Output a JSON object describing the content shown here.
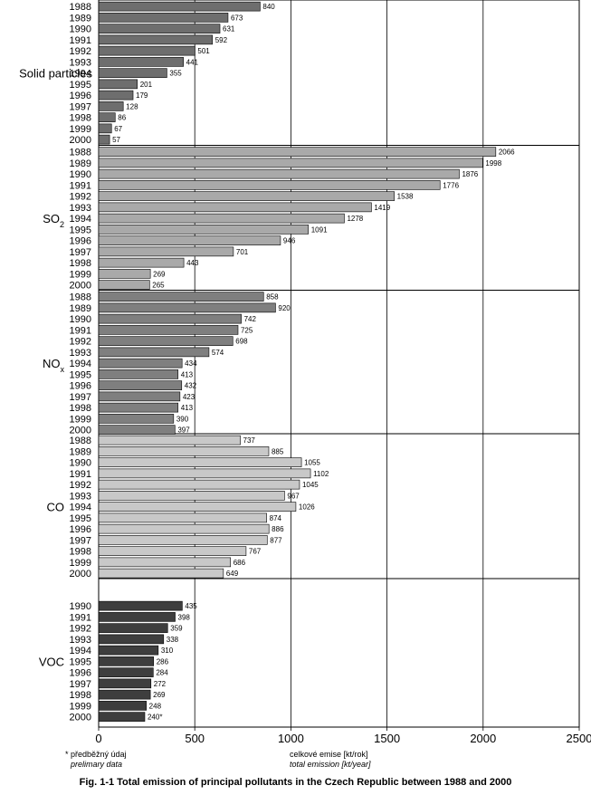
{
  "chart_data": {
    "type": "bar",
    "orientation": "horizontal",
    "xlim": [
      0,
      2500
    ],
    "xticks": [
      0,
      500,
      1000,
      1500,
      2000,
      2500
    ],
    "gridlines": true,
    "groups": [
      {
        "name": "Solid particles",
        "name_sub": "",
        "color": "#6e6e6e",
        "years": [
          "1988",
          "1989",
          "1990",
          "1991",
          "1992",
          "1993",
          "1994",
          "1995",
          "1996",
          "1997",
          "1998",
          "1999",
          "2000"
        ],
        "values": [
          840,
          673,
          631,
          592,
          501,
          441,
          355,
          201,
          179,
          128,
          86,
          67,
          57
        ],
        "labels": [
          "840",
          "673",
          "631",
          "592",
          "501",
          "441",
          "355",
          "201",
          "179",
          "128",
          "86",
          "67",
          "57"
        ]
      },
      {
        "name": "SO",
        "name_sub": "2",
        "color": "#a9a9a9",
        "years": [
          "1988",
          "1989",
          "1990",
          "1991",
          "1992",
          "1993",
          "1994",
          "1995",
          "1996",
          "1997",
          "1998",
          "1999",
          "2000"
        ],
        "values": [
          2066,
          1998,
          1876,
          1776,
          1538,
          1419,
          1278,
          1091,
          946,
          701,
          443,
          269,
          265
        ],
        "labels": [
          "2066",
          "1998",
          "1876",
          "1776",
          "1538",
          "1419",
          "1278",
          "1091",
          "946",
          "701",
          "443",
          "269",
          "265"
        ]
      },
      {
        "name": "NO",
        "name_sub": "x",
        "color": "#7f7f7f",
        "years": [
          "1988",
          "1989",
          "1990",
          "1991",
          "1992",
          "1993",
          "1994",
          "1995",
          "1996",
          "1997",
          "1998",
          "1999",
          "2000"
        ],
        "values": [
          858,
          920,
          742,
          725,
          698,
          574,
          434,
          413,
          432,
          423,
          413,
          390,
          397
        ],
        "labels": [
          "858",
          "920",
          "742",
          "725",
          "698",
          "574",
          "434",
          "413",
          "432",
          "423",
          "413",
          "390",
          "397"
        ]
      },
      {
        "name": "CO",
        "name_sub": "",
        "color": "#c8c8c8",
        "years": [
          "1988",
          "1989",
          "1990",
          "1991",
          "1992",
          "1993",
          "1994",
          "1995",
          "1996",
          "1997",
          "1998",
          "1999",
          "2000"
        ],
        "values": [
          737,
          885,
          1055,
          1102,
          1045,
          967,
          1026,
          874,
          886,
          877,
          767,
          686,
          649
        ],
        "labels": [
          "737",
          "885",
          "1055",
          "1102",
          "1045",
          "967",
          "1026",
          "874",
          "886",
          "877",
          "767",
          "686",
          "649"
        ]
      },
      {
        "name": "VOC",
        "name_sub": "",
        "color": "#3e3e3e",
        "years": [
          "1990",
          "1991",
          "1992",
          "1993",
          "1994",
          "1995",
          "1996",
          "1997",
          "1998",
          "1999",
          "2000"
        ],
        "values": [
          435,
          398,
          359,
          338,
          310,
          286,
          284,
          272,
          269,
          248,
          240
        ],
        "labels": [
          "435",
          "398",
          "359",
          "338",
          "310",
          "286",
          "284",
          "272",
          "269",
          "248",
          "240*"
        ]
      }
    ]
  },
  "notes": {
    "footnote_line1": "* předběžný údaj",
    "footnote_line2": "prelimary data",
    "axis_label_cz": "celkové emise [kt/rok]",
    "axis_label_en": "total emission [kt/year]"
  },
  "caption": "Fig. 1-1  Total emission of principal pollutants in the Czech Republic between 1988 and 2000"
}
